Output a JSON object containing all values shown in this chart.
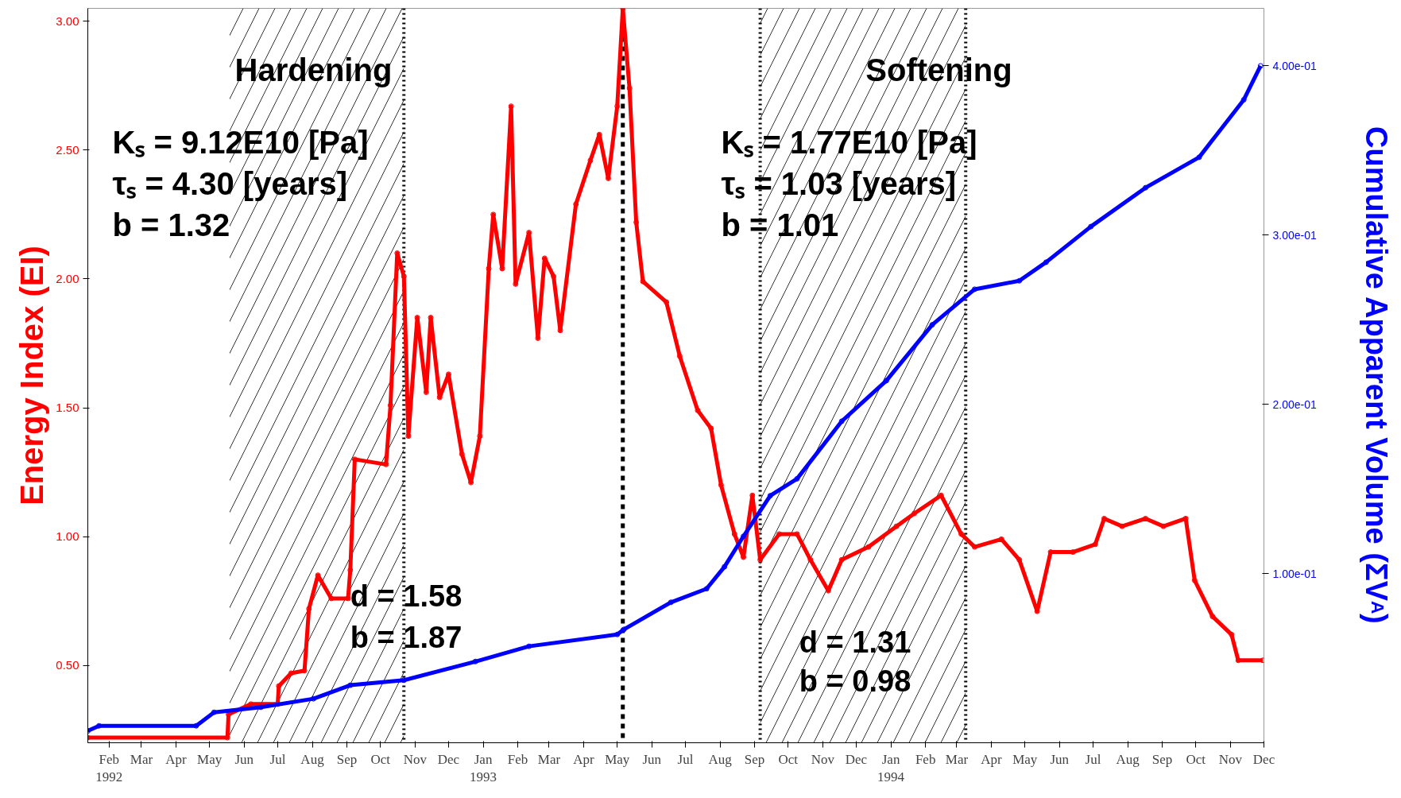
{
  "chart_data": {
    "type": "line",
    "xlabel": null,
    "ylabel": "Energy Index (EI)",
    "y2label": "Cumulative Apparent Volume (ΣV$_{A}$)",
    "xlim": [
      "1992-01-13",
      "1994-12-01"
    ],
    "xticks": [
      {
        "value": "1992-02-01",
        "label": "Feb\n1992"
      },
      {
        "value": "1992-03-01",
        "label": "Mar"
      },
      {
        "value": "1992-04-01",
        "label": "Apr"
      },
      {
        "value": "1992-05-01",
        "label": "May"
      },
      {
        "value": "1992-06-01",
        "label": "Jun"
      },
      {
        "value": "1992-07-01",
        "label": "Jul"
      },
      {
        "value": "1992-08-01",
        "label": "Aug"
      },
      {
        "value": "1992-09-01",
        "label": "Sep"
      },
      {
        "value": "1992-10-01",
        "label": "Oct"
      },
      {
        "value": "1992-11-01",
        "label": "Nov"
      },
      {
        "value": "1992-12-01",
        "label": "Dec"
      },
      {
        "value": "1993-01-01",
        "label": "Jan\n1993"
      },
      {
        "value": "1993-02-01",
        "label": "Feb"
      },
      {
        "value": "1993-03-01",
        "label": "Mar"
      },
      {
        "value": "1993-04-01",
        "label": "Apr"
      },
      {
        "value": "1993-05-01",
        "label": "May"
      },
      {
        "value": "1993-06-01",
        "label": "Jun"
      },
      {
        "value": "1993-07-01",
        "label": "Jul"
      },
      {
        "value": "1993-08-01",
        "label": "Aug"
      },
      {
        "value": "1993-09-01",
        "label": "Sep"
      },
      {
        "value": "1993-10-01",
        "label": "Oct"
      },
      {
        "value": "1993-11-01",
        "label": "Nov"
      },
      {
        "value": "1993-12-01",
        "label": "Dec"
      },
      {
        "value": "1994-01-01",
        "label": "Jan\n1994"
      },
      {
        "value": "1994-02-01",
        "label": "Feb"
      },
      {
        "value": "1994-03-01",
        "label": "Mar"
      },
      {
        "value": "1994-04-01",
        "label": "Apr"
      },
      {
        "value": "1994-05-01",
        "label": "May"
      },
      {
        "value": "1994-06-01",
        "label": "Jun"
      },
      {
        "value": "1994-07-01",
        "label": "Jul"
      },
      {
        "value": "1994-08-01",
        "label": "Aug"
      },
      {
        "value": "1994-09-01",
        "label": "Sep"
      },
      {
        "value": "1994-10-01",
        "label": "Oct"
      },
      {
        "value": "1994-11-01",
        "label": "Nov"
      },
      {
        "value": "1994-12-01",
        "label": "Dec"
      }
    ],
    "ylim": [
      0.2,
      3.05
    ],
    "yticks": [
      {
        "value": 0.5,
        "label": "0.50"
      },
      {
        "value": 1.0,
        "label": "1.00"
      },
      {
        "value": 1.5,
        "label": "1.50"
      },
      {
        "value": 2.0,
        "label": "2.00"
      },
      {
        "value": 2.5,
        "label": "2.50"
      },
      {
        "value": 3.0,
        "label": "3.00"
      }
    ],
    "y2lim": [
      0,
      0.434
    ],
    "y2ticks": [
      {
        "value": 0.1,
        "label": "1.00e-01"
      },
      {
        "value": 0.2,
        "label": "2.00e-01"
      },
      {
        "value": 0.3,
        "label": "3.00e-01"
      },
      {
        "value": 0.4,
        "label": "4.00e-01"
      }
    ],
    "grid": false,
    "marker": "circle",
    "line_style": "solid",
    "series": [
      {
        "color": "#ff0000",
        "x": [
          "1992-01-13",
          "1992-05-17",
          "1992-05-18",
          "1992-06-07",
          "1992-07-01",
          "1992-07-02",
          "1992-07-13",
          "1992-07-25",
          "1992-07-29",
          "1992-08-06",
          "1992-08-18",
          "1992-09-02",
          "1992-09-04",
          "1992-09-08",
          "1992-10-06",
          "1992-10-10",
          "1992-10-16",
          "1992-10-22",
          "1992-10-26",
          "1992-11-03",
          "1992-11-11",
          "1992-11-15",
          "1992-11-23",
          "1992-12-01",
          "1992-12-13",
          "1992-12-21",
          "1992-12-29",
          "1993-01-06",
          "1993-01-10",
          "1993-01-18",
          "1993-01-26",
          "1993-01-30",
          "1993-02-11",
          "1993-02-19",
          "1993-02-25",
          "1993-03-05",
          "1993-03-11",
          "1993-03-25",
          "1993-04-07",
          "1993-04-15",
          "1993-04-23",
          "1993-05-01",
          "1993-05-06",
          "1993-05-12",
          "1993-05-18",
          "1993-05-24",
          "1993-06-14",
          "1993-06-26",
          "1993-07-12",
          "1993-07-24",
          "1993-08-02",
          "1993-08-14",
          "1993-08-22",
          "1993-08-30",
          "1993-09-06",
          "1993-09-23",
          "1993-10-09",
          "1993-10-21",
          "1993-11-06",
          "1993-11-18",
          "1993-12-12",
          "1994-01-06",
          "1994-01-22",
          "1994-02-15",
          "1994-03-05",
          "1994-03-17",
          "1994-04-10",
          "1994-04-26",
          "1994-05-12",
          "1994-05-24",
          "1994-06-13",
          "1994-07-03",
          "1994-07-11",
          "1994-07-27",
          "1994-08-17",
          "1994-09-02",
          "1994-09-22",
          "1994-09-30",
          "1994-10-16",
          "1994-11-02",
          "1994-11-08",
          "1994-11-30"
        ],
        "values": [
          0.22,
          0.22,
          0.31,
          0.35,
          0.35,
          0.42,
          0.47,
          0.48,
          0.72,
          0.85,
          0.76,
          0.76,
          0.87,
          1.3,
          1.28,
          1.51,
          2.1,
          2.01,
          1.39,
          1.85,
          1.56,
          1.85,
          1.54,
          1.63,
          1.32,
          1.21,
          1.39,
          2.04,
          2.25,
          2.04,
          2.67,
          1.98,
          2.18,
          1.77,
          2.08,
          2.01,
          1.8,
          2.29,
          2.46,
          2.56,
          2.39,
          2.67,
          3.05,
          2.74,
          2.22,
          1.99,
          1.91,
          1.7,
          1.49,
          1.42,
          1.2,
          1.01,
          0.92,
          1.16,
          0.91,
          1.01,
          1.01,
          0.91,
          0.79,
          0.91,
          0.96,
          1.04,
          1.09,
          1.16,
          1.01,
          0.96,
          0.99,
          0.91,
          0.71,
          0.94,
          0.94,
          0.97,
          1.07,
          1.04,
          1.07,
          1.04,
          1.07,
          0.83,
          0.69,
          0.62,
          0.52,
          0.52
        ]
      },
      {
        "color": "#0000ff",
        "axis": "y2",
        "x": [
          "1992-01-13",
          "1992-01-23",
          "1992-04-19",
          "1992-05-05",
          "1992-06-16",
          "1992-08-02",
          "1992-09-04",
          "1992-10-22",
          "1992-12-25",
          "1993-02-11",
          "1993-05-01",
          "1993-05-07",
          "1993-06-18",
          "1993-07-20",
          "1993-08-05",
          "1993-08-22",
          "1993-09-15",
          "1993-10-09",
          "1993-11-18",
          "1993-12-28",
          "1994-02-07",
          "1994-03-17",
          "1994-04-26",
          "1994-05-20",
          "1994-06-29",
          "1994-08-17",
          "1994-10-04",
          "1994-11-13",
          "1994-11-28"
        ],
        "values": [
          0.007,
          0.01,
          0.01,
          0.018,
          0.021,
          0.026,
          0.034,
          0.037,
          0.048,
          0.057,
          0.064,
          0.067,
          0.083,
          0.091,
          0.104,
          0.122,
          0.146,
          0.156,
          0.19,
          0.214,
          0.247,
          0.268,
          0.273,
          0.284,
          0.305,
          0.328,
          0.346,
          0.38,
          0.4
        ]
      }
    ],
    "ref_lines": [
      {
        "axis": "x",
        "value": "1993-05-06",
        "color": "#000000",
        "line_style": "dashed"
      },
      {
        "axis": "x",
        "value": "1992-10-22",
        "color": "#000000",
        "line_style": "dotted"
      },
      {
        "axis": "x",
        "value": "1993-09-06",
        "color": "#000000",
        "line_style": "dotted"
      },
      {
        "axis": "x",
        "value": "1994-03-09",
        "color": "#000000",
        "line_style": "dotted"
      }
    ],
    "bands": [
      {
        "axis": "x",
        "from": "1992-05-19",
        "to": "1992-10-22",
        "color": "#000000"
      },
      {
        "axis": "x",
        "from": "1993-09-06",
        "to": "1994-03-09",
        "color": "#000000"
      }
    ],
    "annotations": [
      "Hardening",
      "Softening",
      "Kₛ = 9.12E10 [Pa]",
      "τₛ = 4.30 [years]",
      "b = 1.32",
      "Kₛ = 1.77E10 [Pa]",
      "τₛ = 1.03 [years]",
      "b = 1.01",
      "d = 1.58",
      "b = 1.87",
      "d = 1.31",
      "b = 0.98"
    ]
  }
}
